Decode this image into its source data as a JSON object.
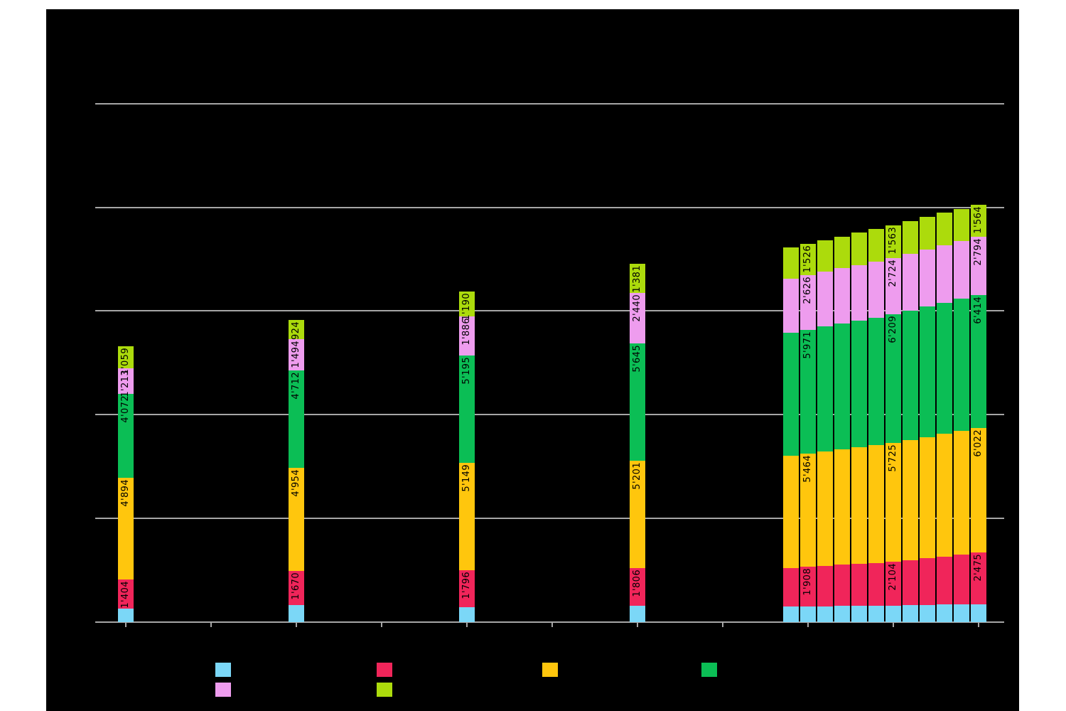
{
  "chart_data": {
    "type": "bar",
    "stacked": true,
    "orientation": "vertical",
    "background_color": "#000000",
    "page_color": "#FFFFFF",
    "axis_color": "#A6A6A6",
    "data_label_color": "#000000",
    "grid_on": true,
    "y_axis": {
      "min": 0,
      "max": 25000,
      "gridline_step": 5000,
      "tick_labels_visible": false
    },
    "x_axis": {
      "num_ticks": 11,
      "tick_labels_visible": false
    },
    "note": "Title, axis tick labels and legend texts are rendered black-on-black (invisible in the bitmap). Numeric values without a printed data label are estimated from bar pixel heights.",
    "series": [
      {
        "key": "sky-blue",
        "color": "#7BD7F7"
      },
      {
        "key": "crimson",
        "color": "#F0255A"
      },
      {
        "key": "gold",
        "color": "#FFC60D"
      },
      {
        "key": "green",
        "color": "#0BBE55"
      },
      {
        "key": "orchid",
        "color": "#EE9CEE"
      },
      {
        "key": "yellow-green",
        "color": "#ACDB0C"
      }
    ],
    "bars": [
      {
        "group": "single",
        "tick": 0,
        "values": {
          "sky-blue": 650,
          "crimson": 1404,
          "gold": 4894,
          "green": 4072,
          "orchid": 1213,
          "yellow-green": 1059
        },
        "labels": {
          "crimson": "1'404",
          "gold": "4'894",
          "green": "4'072",
          "orchid": "1'213",
          "yellow-green": "1'059"
        }
      },
      {
        "group": "single",
        "tick": 2,
        "values": {
          "sky-blue": 810,
          "crimson": 1670,
          "gold": 4954,
          "green": 4712,
          "orchid": 1494,
          "yellow-green": 924
        },
        "labels": {
          "crimson": "1'670",
          "gold": "4'954",
          "green": "4'712",
          "orchid": "1'494",
          "yellow-green": "924"
        }
      },
      {
        "group": "single",
        "tick": 4,
        "values": {
          "sky-blue": 720,
          "crimson": 1796,
          "gold": 5149,
          "green": 5195,
          "orchid": 1886,
          "yellow-green": 1190
        },
        "labels": {
          "crimson": "1'796",
          "gold": "5'149",
          "green": "5'195",
          "orchid": "1'886",
          "yellow-green": "1'190"
        }
      },
      {
        "group": "single",
        "tick": 6,
        "values": {
          "sky-blue": 790,
          "crimson": 1806,
          "gold": 5201,
          "green": 5645,
          "orchid": 2440,
          "yellow-green": 1381
        },
        "labels": {
          "crimson": "1'806",
          "gold": "5'201",
          "green": "5'645",
          "orchid": "2'440",
          "yellow-green": "1'381"
        }
      },
      {
        "group": "cluster",
        "pos": 0,
        "values": {
          "sky-blue": 746,
          "crimson": 1869,
          "gold": 5412,
          "green": 5923,
          "orchid": 2606,
          "yellow-green": 1519
        },
        "labels": {}
      },
      {
        "group": "cluster",
        "pos": 1,
        "values": {
          "sky-blue": 755,
          "crimson": 1908,
          "gold": 5464,
          "green": 5971,
          "orchid": 2626,
          "yellow-green": 1526
        },
        "labels": {
          "crimson": "1'908",
          "gold": "5'464",
          "green": "5'971",
          "orchid": "2'626",
          "yellow-green": "1'526"
        }
      },
      {
        "group": "cluster",
        "pos": 2,
        "values": {
          "sky-blue": 764,
          "crimson": 1947,
          "gold": 5516,
          "green": 6019,
          "orchid": 2646,
          "yellow-green": 1533
        },
        "labels": {}
      },
      {
        "group": "cluster",
        "pos": 3,
        "values": {
          "sky-blue": 773,
          "crimson": 1986,
          "gold": 5568,
          "green": 6066,
          "orchid": 2665,
          "yellow-green": 1541
        },
        "labels": {}
      },
      {
        "group": "cluster",
        "pos": 4,
        "values": {
          "sky-blue": 782,
          "crimson": 2026,
          "gold": 5621,
          "green": 6114,
          "orchid": 2685,
          "yellow-green": 1548
        },
        "labels": {}
      },
      {
        "group": "cluster",
        "pos": 5,
        "values": {
          "sky-blue": 791,
          "crimson": 2065,
          "gold": 5673,
          "green": 6161,
          "orchid": 2704,
          "yellow-green": 1556
        },
        "labels": {}
      },
      {
        "group": "cluster",
        "pos": 6,
        "values": {
          "sky-blue": 800,
          "crimson": 2104,
          "gold": 5725,
          "green": 6209,
          "orchid": 2724,
          "yellow-green": 1563
        },
        "labels": {
          "crimson": "2'104",
          "gold": "5'725",
          "green": "6'209",
          "orchid": "2'724",
          "yellow-green": "1'563"
        }
      },
      {
        "group": "cluster",
        "pos": 7,
        "values": {
          "sky-blue": 814,
          "crimson": 2178,
          "gold": 5784,
          "green": 6250,
          "orchid": 2738,
          "yellow-green": 1563
        },
        "labels": {}
      },
      {
        "group": "cluster",
        "pos": 8,
        "values": {
          "sky-blue": 828,
          "crimson": 2252,
          "gold": 5844,
          "green": 6291,
          "orchid": 2752,
          "yellow-green": 1563
        },
        "labels": {}
      },
      {
        "group": "cluster",
        "pos": 9,
        "values": {
          "sky-blue": 842,
          "crimson": 2327,
          "gold": 5903,
          "green": 6332,
          "orchid": 2766,
          "yellow-green": 1564
        },
        "labels": {}
      },
      {
        "group": "cluster",
        "pos": 10,
        "values": {
          "sky-blue": 856,
          "crimson": 2401,
          "gold": 5963,
          "green": 6373,
          "orchid": 2780,
          "yellow-green": 1564
        },
        "labels": {}
      },
      {
        "group": "cluster",
        "pos": 11,
        "values": {
          "sky-blue": 870,
          "crimson": 2475,
          "gold": 6022,
          "green": 6414,
          "orchid": 2794,
          "yellow-green": 1564
        },
        "labels": {
          "crimson": "2'475",
          "gold": "6'022",
          "green": "6'414",
          "orchid": "2'794",
          "yellow-green": "1'564"
        }
      }
    ],
    "legend": {
      "rows": [
        [
          "sky-blue",
          "crimson",
          "gold",
          "green"
        ],
        [
          "orchid",
          "yellow-green"
        ]
      ]
    }
  }
}
